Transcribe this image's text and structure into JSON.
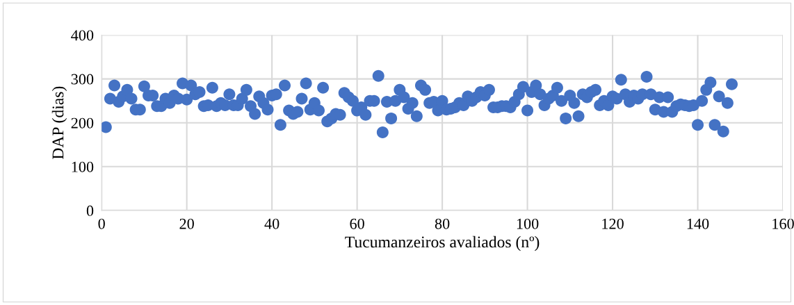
{
  "chart_data": {
    "type": "scatter",
    "xlabel": "Tucumanzeiros avaliados (nº)",
    "ylabel": "DAP (dias)",
    "x": [
      1,
      2,
      3,
      4,
      5,
      6,
      7,
      8,
      9,
      10,
      11,
      12,
      13,
      14,
      15,
      16,
      17,
      18,
      19,
      20,
      21,
      22,
      23,
      24,
      25,
      26,
      27,
      28,
      29,
      30,
      31,
      32,
      33,
      34,
      35,
      36,
      37,
      38,
      39,
      40,
      41,
      42,
      43,
      44,
      45,
      46,
      47,
      48,
      49,
      50,
      51,
      52,
      53,
      54,
      55,
      56,
      57,
      58,
      59,
      60,
      61,
      62,
      63,
      64,
      65,
      66,
      67,
      68,
      69,
      70,
      71,
      72,
      73,
      74,
      75,
      76,
      77,
      78,
      79,
      80,
      81,
      82,
      83,
      84,
      85,
      86,
      87,
      88,
      89,
      90,
      91,
      92,
      93,
      94,
      95,
      96,
      97,
      98,
      99,
      100,
      101,
      102,
      103,
      104,
      105,
      106,
      107,
      108,
      109,
      110,
      111,
      112,
      113,
      114,
      115,
      116,
      117,
      118,
      119,
      120,
      121,
      122,
      123,
      124,
      125,
      126,
      127,
      128,
      129,
      130,
      131,
      132,
      133,
      134,
      135,
      136,
      137,
      138,
      139,
      140,
      141,
      142,
      143,
      144,
      145,
      146,
      147,
      148
    ],
    "series": [
      {
        "color": "#4472c4",
        "values": [
          190,
          255,
          285,
          248,
          260,
          275,
          255,
          230,
          230,
          283,
          262,
          262,
          238,
          238,
          255,
          245,
          262,
          255,
          290,
          253,
          285,
          265,
          270,
          238,
          240,
          280,
          238,
          245,
          240,
          265,
          240,
          240,
          255,
          275,
          238,
          220,
          260,
          245,
          230,
          262,
          265,
          195,
          285,
          228,
          220,
          225,
          255,
          290,
          230,
          245,
          228,
          280,
          203,
          210,
          220,
          218,
          268,
          258,
          250,
          228,
          235,
          218,
          250,
          250,
          307,
          178,
          248,
          210,
          250,
          275,
          258,
          232,
          245,
          215,
          285,
          275,
          245,
          248,
          228,
          250,
          230,
          232,
          235,
          245,
          240,
          260,
          250,
          258,
          270,
          262,
          275,
          235,
          235,
          238,
          238,
          235,
          248,
          265,
          282,
          228,
          270,
          285,
          265,
          240,
          255,
          262,
          280,
          250,
          210,
          262,
          245,
          215,
          265,
          258,
          270,
          275,
          240,
          250,
          240,
          260,
          255,
          298,
          265,
          248,
          262,
          255,
          265,
          305,
          265,
          230,
          258,
          225,
          258,
          225,
          238,
          242,
          240,
          238,
          240,
          195,
          250,
          275,
          292,
          195,
          260,
          180,
          245,
          288
        ]
      }
    ],
    "xlim": [
      0,
      160
    ],
    "xticks": [
      0,
      20,
      40,
      60,
      80,
      100,
      120,
      140,
      160
    ],
    "ylim": [
      0,
      400
    ],
    "yticks": [
      0,
      100,
      200,
      300,
      400
    ],
    "grid": true,
    "marker": "circle"
  }
}
